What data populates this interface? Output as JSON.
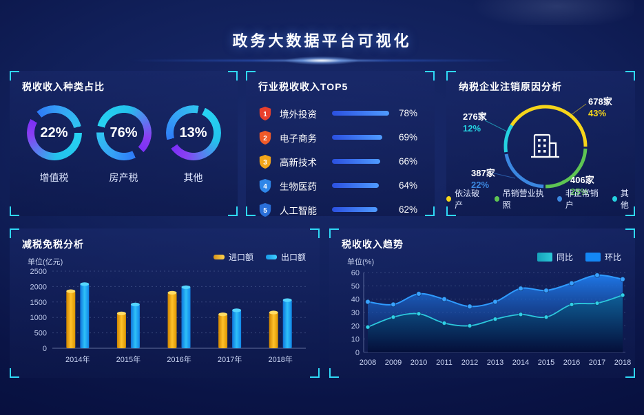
{
  "header": {
    "title": "政务大数据平台可视化"
  },
  "accent": {
    "bracket": "#2fd9f7",
    "background": "#0a1446"
  },
  "chart_data": [
    {
      "id": "tax_type",
      "type": "donut",
      "title": "税收收入种类占比",
      "items": [
        {
          "label": "增值税",
          "pct": 22,
          "pct_label": "22%"
        },
        {
          "label": "房产税",
          "pct": 76,
          "pct_label": "76%"
        },
        {
          "label": "其他",
          "pct": 13,
          "pct_label": "13%"
        }
      ],
      "ring_colors": [
        "#7b2ff7",
        "#2e7bf8",
        "#27d3f2"
      ]
    },
    {
      "id": "industry_top5",
      "type": "bar",
      "orientation": "horizontal",
      "title": "行业税收收入TOP5",
      "xmax": 80,
      "bar_color_start": "#2b50e0",
      "bar_color_end": "#4f9bff",
      "rows": [
        {
          "rank": "1",
          "label": "境外投资",
          "value": 78,
          "pct_label": "78%",
          "badge_color": "#e8402d"
        },
        {
          "rank": "2",
          "label": "电子商务",
          "value": 69,
          "pct_label": "69%",
          "badge_color": "#f05a28"
        },
        {
          "rank": "3",
          "label": "高新技术",
          "value": 66,
          "pct_label": "66%",
          "badge_color": "#f2a51a"
        },
        {
          "rank": "4",
          "label": "生物医药",
          "value": 64,
          "pct_label": "64%",
          "badge_color": "#2e86e8"
        },
        {
          "rank": "5",
          "label": "人工智能",
          "value": 62,
          "pct_label": "62%",
          "badge_color": "#2a6fd8"
        }
      ]
    },
    {
      "id": "deregistration",
      "type": "donut",
      "title": "纳税企业注销原因分析",
      "center_icon": "building-icon",
      "segments": [
        {
          "label": "依法破产",
          "count_label": "678家",
          "pct": 43,
          "pct_label": "43%",
          "color": "#f6d51a"
        },
        {
          "label": "吊销营业执照",
          "count_label": "406家",
          "pct": 25,
          "pct_label": "25%",
          "color": "#5ec453"
        },
        {
          "label": "非正常销户",
          "count_label": "387家",
          "pct": 22,
          "pct_label": "22%",
          "color": "#3b87e0"
        },
        {
          "label": "其他",
          "count_label": "276家",
          "pct": 12,
          "pct_label": "12%",
          "color": "#25d2e0"
        }
      ]
    },
    {
      "id": "tax_reduction",
      "type": "bar",
      "title": "减税免税分析",
      "unit": "单位(亿元)",
      "categories": [
        "2014年",
        "2015年",
        "2016年",
        "2017年",
        "2018年"
      ],
      "series": [
        {
          "name": "进口额",
          "color": "#f5a800",
          "values": [
            1850,
            1130,
            1800,
            1100,
            1160
          ]
        },
        {
          "name": "出口额",
          "color": "#28b4f0",
          "values": [
            2080,
            1420,
            1980,
            1230,
            1560
          ]
        }
      ],
      "ylim": [
        0,
        2500
      ],
      "yticks": [
        0,
        500,
        1000,
        1500,
        2000,
        2500
      ],
      "grid": "dashed",
      "legend_position": "top-right"
    },
    {
      "id": "trend",
      "type": "area",
      "title": "税收收入趋势",
      "unit": "单位(%)",
      "x": [
        "2008",
        "2009",
        "2010",
        "2011",
        "2012",
        "2013",
        "2014",
        "2015",
        "2016",
        "2017",
        "2018"
      ],
      "series": [
        {
          "name": "同比",
          "color": "#28c4d8",
          "values": [
            19,
            26.5,
            29,
            22,
            20,
            25,
            28.5,
            26.5,
            36,
            37,
            43
          ]
        },
        {
          "name": "环比",
          "color": "#1e88f7",
          "values": [
            38,
            36,
            44,
            40,
            34.5,
            38,
            48,
            46.5,
            52,
            58,
            55
          ]
        }
      ],
      "ylim": [
        0,
        60
      ],
      "yticks": [
        0,
        10,
        20,
        30,
        40,
        50,
        60
      ],
      "grid": "dashed",
      "legend_position": "top-right"
    }
  ]
}
